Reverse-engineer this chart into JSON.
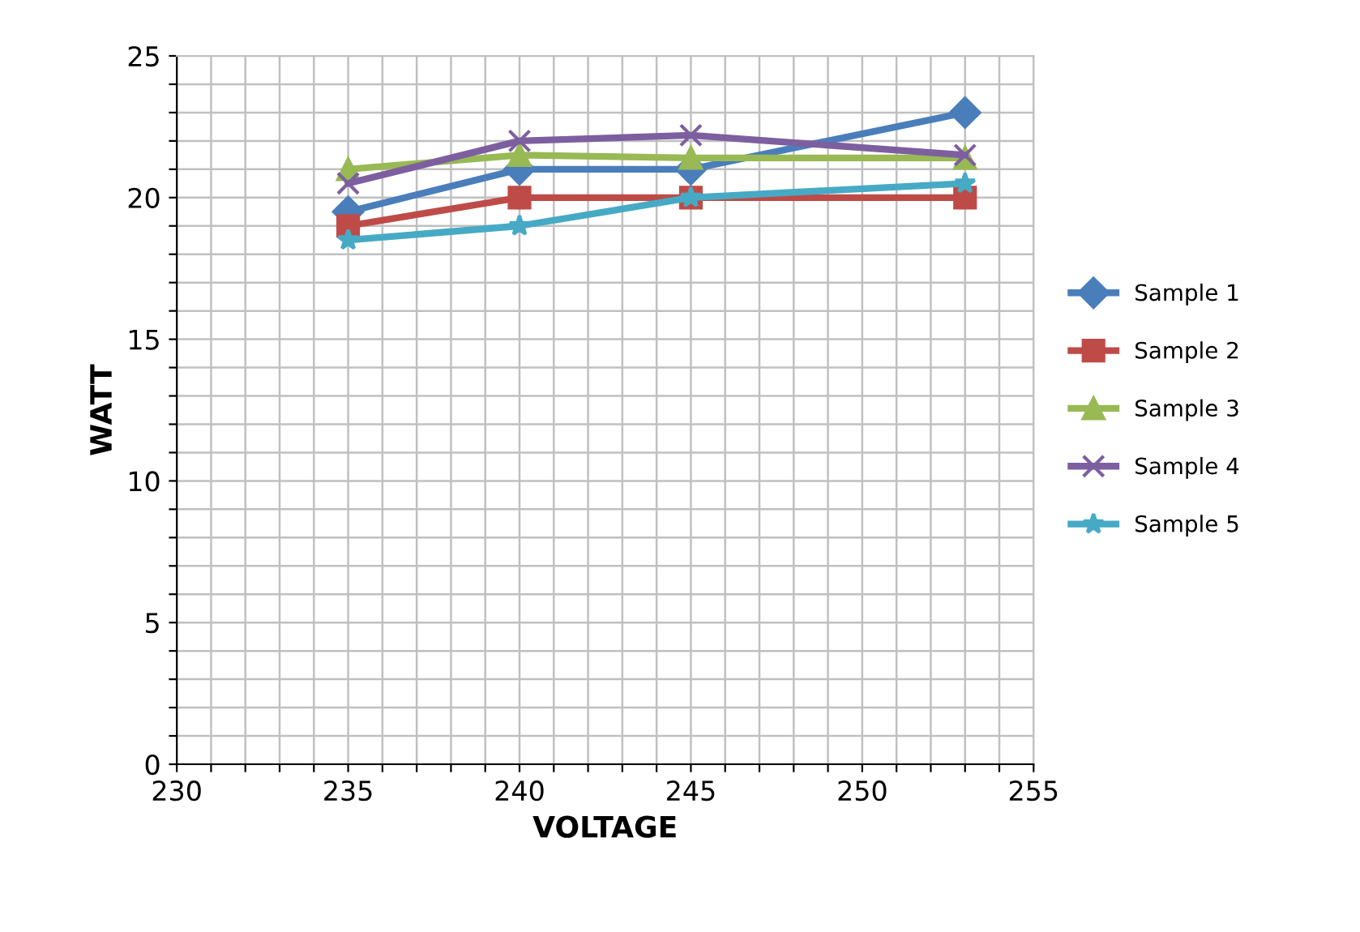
{
  "chart_data": {
    "type": "line",
    "xlabel": "VOLTAGE",
    "ylabel": "WATT",
    "x": [
      235,
      240,
      245,
      253
    ],
    "series": [
      {
        "name": "Sample 1",
        "color": "#4a7ebb",
        "marker": "diamond",
        "values": [
          19.5,
          21,
          21,
          23
        ]
      },
      {
        "name": "Sample 2",
        "color": "#be4b48",
        "marker": "square",
        "values": [
          19,
          20,
          20,
          20
        ]
      },
      {
        "name": "Sample 3",
        "color": "#98b954",
        "marker": "triangle",
        "values": [
          21,
          21.5,
          21.4,
          21.4
        ]
      },
      {
        "name": "Sample 4",
        "color": "#7d5fa0",
        "marker": "cross",
        "values": [
          20.5,
          22,
          22.2,
          21.5
        ]
      },
      {
        "name": "Sample 5",
        "color": "#46aac5",
        "marker": "star",
        "values": [
          18.5,
          19,
          20,
          20.5
        ]
      }
    ],
    "xlim": [
      230,
      255
    ],
    "ylim": [
      0,
      25
    ],
    "xticks": [
      230,
      {
        "value": 231,
        "label": null
      },
      {
        "value": 232,
        "label": null
      },
      {
        "value": 233,
        "label": null
      },
      {
        "value": 234,
        "label": null
      },
      235,
      {
        "value": 236,
        "label": null
      },
      {
        "value": 237,
        "label": null
      },
      {
        "value": 238,
        "label": null
      },
      {
        "value": 239,
        "label": null
      },
      240,
      {
        "value": 241,
        "label": null
      },
      {
        "value": 242,
        "label": null
      },
      {
        "value": 243,
        "label": null
      },
      {
        "value": 244,
        "label": null
      },
      245,
      {
        "value": 246,
        "label": null
      },
      {
        "value": 247,
        "label": null
      },
      {
        "value": 248,
        "label": null
      },
      {
        "value": 249,
        "label": null
      },
      250,
      {
        "value": 251,
        "label": null
      },
      {
        "value": 252,
        "label": null
      },
      {
        "value": 253,
        "label": null
      },
      {
        "value": 254,
        "label": null
      },
      255
    ],
    "yticks": [
      0,
      {
        "value": 1,
        "label": null
      },
      {
        "value": 2,
        "label": null
      },
      {
        "value": 3,
        "label": null
      },
      {
        "value": 4,
        "label": null
      },
      5,
      {
        "value": 6,
        "label": null
      },
      {
        "value": 7,
        "label": null
      },
      {
        "value": 8,
        "label": null
      },
      {
        "value": 9,
        "label": null
      },
      10,
      {
        "value": 11,
        "label": null
      },
      {
        "value": 12,
        "label": null
      },
      {
        "value": 13,
        "label": null
      },
      {
        "value": 14,
        "label": null
      },
      15,
      {
        "value": 16,
        "label": null
      },
      {
        "value": 17,
        "label": null
      },
      {
        "value": 18,
        "label": null
      },
      {
        "value": 19,
        "label": null
      },
      20,
      {
        "value": 21,
        "label": null
      },
      {
        "value": 22,
        "label": null
      },
      {
        "value": 23,
        "label": null
      },
      {
        "value": 24,
        "label": null
      },
      25
    ],
    "grid": true,
    "legend": "right",
    "line_style": "solid"
  }
}
